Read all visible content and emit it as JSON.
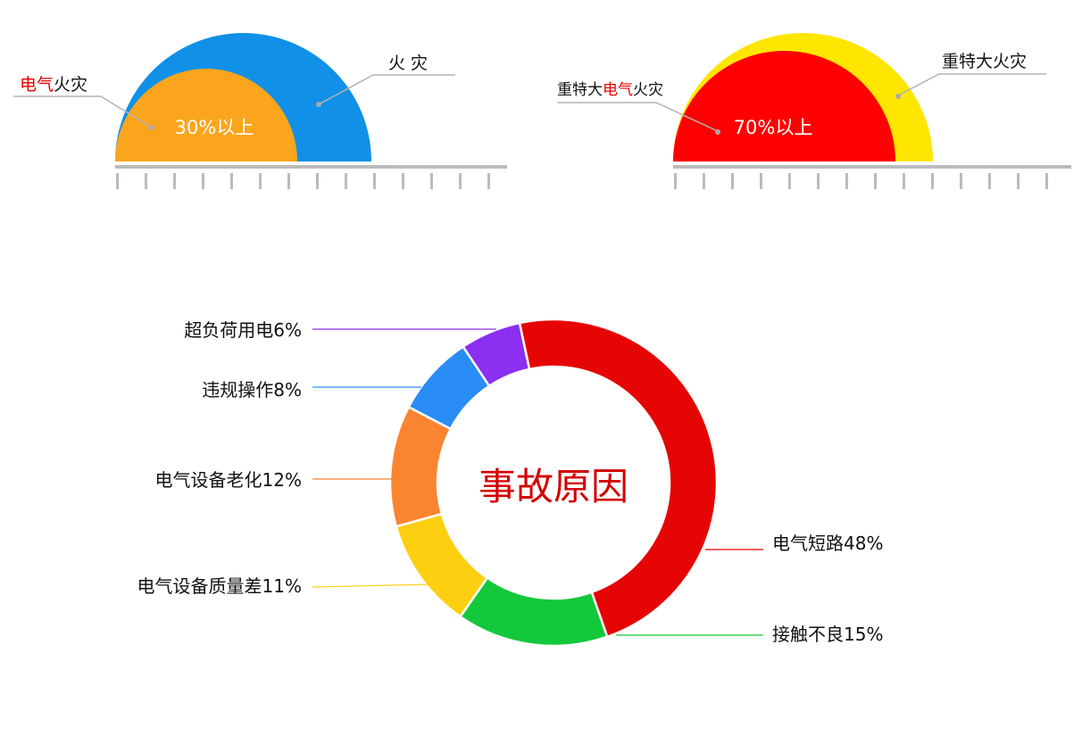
{
  "chart_data": [
    {
      "type": "semicircle-comparison",
      "outer": {
        "label": "火 灾",
        "color": "#1090e6"
      },
      "inner": {
        "label_prefix": "",
        "label_highlight": "电气",
        "label_suffix": "火灾",
        "value_text": "30%以上",
        "share": 0.3,
        "color": "#fba51c"
      },
      "highlight_color": "#e60000"
    },
    {
      "type": "semicircle-comparison",
      "outer": {
        "label": "重特大火灾",
        "color": "#ffe600"
      },
      "inner": {
        "label_prefix": "重特大",
        "label_highlight": "电气",
        "label_suffix": "火灾",
        "value_text": "70%以上",
        "share": 0.7,
        "color": "#ff0000"
      },
      "highlight_color": "#e60000"
    },
    {
      "type": "pie",
      "donut": true,
      "center_label": "事故原因",
      "center_color": "#d40000",
      "slices": [
        {
          "label": "电气短路48%",
          "value": 48,
          "color": "#e60505"
        },
        {
          "label": "接触不良15%",
          "value": 15,
          "color": "#14c83c"
        },
        {
          "label": "电气设备质量差11%",
          "value": 11,
          "color": "#fcd011"
        },
        {
          "label": "电气设备老化12%",
          "value": 12,
          "color": "#fb8430"
        },
        {
          "label": "违规操作8%",
          "value": 8,
          "color": "#2a8cf5"
        },
        {
          "label": "超负荷用电6%",
          "value": 6,
          "color": "#8b2ff0"
        }
      ]
    }
  ]
}
